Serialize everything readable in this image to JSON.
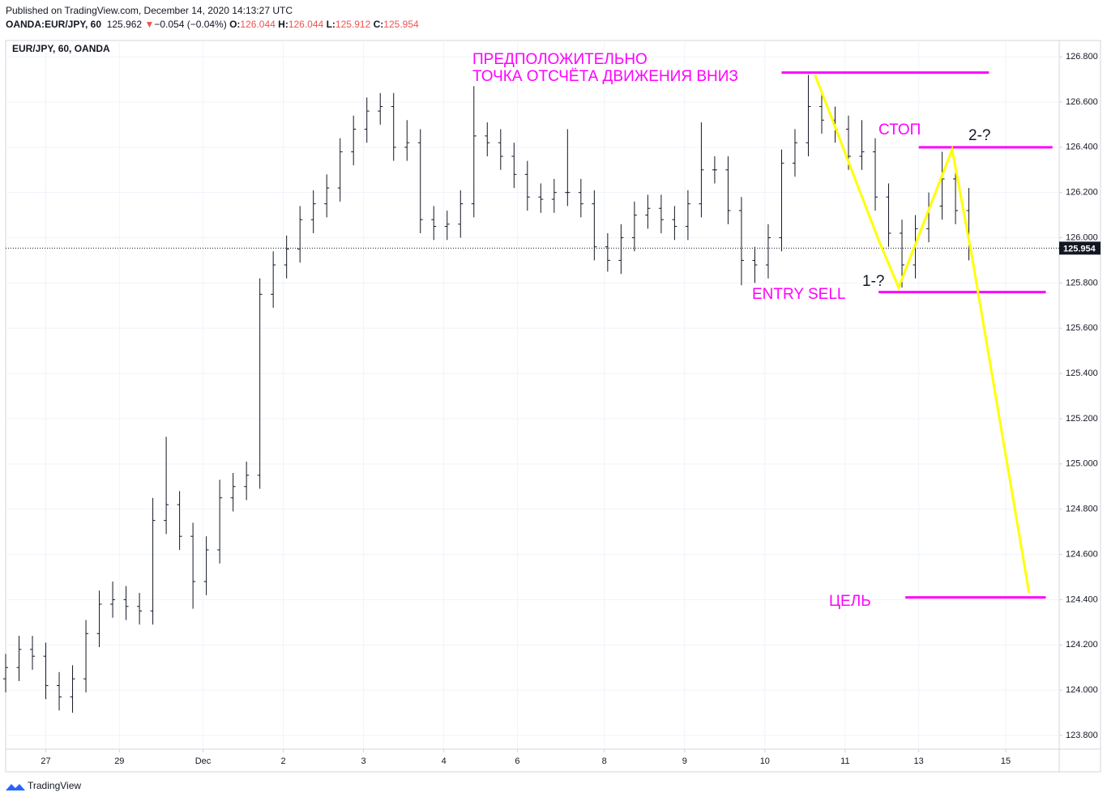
{
  "header": {
    "published": "Published on TradingView.com, December 14, 2020 14:13:27 UTC",
    "symbol": "OANDA:EUR/JPY, 60",
    "last": "125.962",
    "arrow": "▼",
    "change": "−0.054 (−0.04%)",
    "o_label": "O:",
    "o": "126.044",
    "h_label": "H:",
    "h": "126.044",
    "l_label": "L:",
    "l": "125.912",
    "c_label": "C:",
    "c": "125.954"
  },
  "footer": {
    "brand": "TradingView"
  },
  "chart_data": {
    "type": "ohlc",
    "title": "EUR/JPY, 60, OANDA",
    "color": "#131722",
    "x": [
      0,
      4,
      8,
      12,
      16,
      20,
      24,
      28,
      32,
      36,
      40,
      44,
      48,
      52,
      56,
      60,
      64,
      68,
      72,
      76,
      80,
      84,
      88,
      92,
      96,
      100,
      104,
      108,
      112,
      116,
      120,
      124,
      128,
      132,
      136,
      140,
      144,
      148,
      152,
      156,
      160,
      164,
      168,
      172,
      176,
      180,
      184,
      188,
      192,
      196,
      200,
      204,
      208,
      212,
      216,
      220,
      224,
      228,
      232,
      236,
      240,
      244,
      248,
      252,
      256,
      260,
      264,
      268,
      272,
      276,
      280,
      284,
      288
    ],
    "bars": [
      [
        124.05,
        124.16,
        123.99,
        124.1
      ],
      [
        124.1,
        124.24,
        124.04,
        124.18
      ],
      [
        124.18,
        124.24,
        124.09,
        124.15
      ],
      [
        124.15,
        124.21,
        123.96,
        124.02
      ],
      [
        124.02,
        124.08,
        123.91,
        123.97
      ],
      [
        123.97,
        124.11,
        123.9,
        124.05
      ],
      [
        124.05,
        124.31,
        123.99,
        124.25
      ],
      [
        124.25,
        124.44,
        124.19,
        124.38
      ],
      [
        124.38,
        124.48,
        124.32,
        124.4
      ],
      [
        124.4,
        124.46,
        124.31,
        124.37
      ],
      [
        124.37,
        124.43,
        124.29,
        124.35
      ],
      [
        124.35,
        124.85,
        124.29,
        124.75
      ],
      [
        124.75,
        125.12,
        124.69,
        124.82
      ],
      [
        124.82,
        124.88,
        124.62,
        124.68
      ],
      [
        124.68,
        124.74,
        124.36,
        124.48
      ],
      [
        124.48,
        124.68,
        124.42,
        124.62
      ],
      [
        124.62,
        124.93,
        124.56,
        124.85
      ],
      [
        124.85,
        124.96,
        124.79,
        124.9
      ],
      [
        124.9,
        125.01,
        124.84,
        124.95
      ],
      [
        124.95,
        125.82,
        124.89,
        125.75
      ],
      [
        125.75,
        125.94,
        125.69,
        125.88
      ],
      [
        125.88,
        126.01,
        125.82,
        125.95
      ],
      [
        125.95,
        126.14,
        125.89,
        126.08
      ],
      [
        126.08,
        126.21,
        126.02,
        126.15
      ],
      [
        126.15,
        126.28,
        126.09,
        126.22
      ],
      [
        126.22,
        126.44,
        126.16,
        126.38
      ],
      [
        126.38,
        126.54,
        126.32,
        126.48
      ],
      [
        126.48,
        126.62,
        126.42,
        126.56
      ],
      [
        126.56,
        126.64,
        126.5,
        126.58
      ],
      [
        126.58,
        126.64,
        126.34,
        126.4
      ],
      [
        126.4,
        126.52,
        126.34,
        126.42
      ],
      [
        126.42,
        126.48,
        126.02,
        126.08
      ],
      [
        126.08,
        126.14,
        125.99,
        126.05
      ],
      [
        126.05,
        126.12,
        125.99,
        126.06
      ],
      [
        126.06,
        126.21,
        126.0,
        126.15
      ],
      [
        126.15,
        126.67,
        126.09,
        126.45
      ],
      [
        126.45,
        126.51,
        126.36,
        126.42
      ],
      [
        126.42,
        126.48,
        126.3,
        126.36
      ],
      [
        126.36,
        126.42,
        126.22,
        126.28
      ],
      [
        126.28,
        126.34,
        126.12,
        126.18
      ],
      [
        126.18,
        126.24,
        126.11,
        126.17
      ],
      [
        126.17,
        126.26,
        126.11,
        126.2
      ],
      [
        126.2,
        126.48,
        126.14,
        126.2
      ],
      [
        126.2,
        126.26,
        126.09,
        126.15
      ],
      [
        126.15,
        126.21,
        125.9,
        125.96
      ],
      [
        125.96,
        126.02,
        125.85,
        125.9
      ],
      [
        125.9,
        126.06,
        125.84,
        126.0
      ],
      [
        126.0,
        126.16,
        125.94,
        126.1
      ],
      [
        126.1,
        126.19,
        126.04,
        126.13
      ],
      [
        126.13,
        126.19,
        126.02,
        126.08
      ],
      [
        126.08,
        126.14,
        125.99,
        126.05
      ],
      [
        126.05,
        126.21,
        125.99,
        126.15
      ],
      [
        126.15,
        126.51,
        126.09,
        126.3
      ],
      [
        126.3,
        126.36,
        126.24,
        126.3
      ],
      [
        126.3,
        126.36,
        126.06,
        126.12
      ],
      [
        126.12,
        126.18,
        125.79,
        125.9
      ],
      [
        125.9,
        125.96,
        125.8,
        125.88
      ],
      [
        125.88,
        126.06,
        125.82,
        126.0
      ],
      [
        126.0,
        126.39,
        125.94,
        126.33
      ],
      [
        126.33,
        126.48,
        126.27,
        126.42
      ],
      [
        126.42,
        126.72,
        126.36,
        126.58
      ],
      [
        126.58,
        126.64,
        126.46,
        126.52
      ],
      [
        126.52,
        126.58,
        126.42,
        126.48
      ],
      [
        126.48,
        126.54,
        126.3,
        126.36
      ],
      [
        126.36,
        126.52,
        126.3,
        126.38
      ],
      [
        126.38,
        126.44,
        126.12,
        126.18
      ],
      [
        126.18,
        126.24,
        125.96,
        126.02
      ],
      [
        126.02,
        126.08,
        125.78,
        125.88
      ],
      [
        125.88,
        126.1,
        125.82,
        126.04
      ],
      [
        126.04,
        126.2,
        125.98,
        126.14
      ],
      [
        126.14,
        126.38,
        126.08,
        126.26
      ],
      [
        126.26,
        126.32,
        126.06,
        126.12
      ],
      [
        126.12,
        126.22,
        125.9,
        125.96
      ]
    ],
    "xlim": [
      0,
      315
    ],
    "xticks": [
      {
        "value": 12,
        "label": "27"
      },
      {
        "value": 34,
        "label": "29"
      },
      {
        "value": 59,
        "label": "Dec"
      },
      {
        "value": 83,
        "label": "2"
      },
      {
        "value": 107,
        "label": "3"
      },
      {
        "value": 131,
        "label": "4"
      },
      {
        "value": 153,
        "label": "6"
      },
      {
        "value": 179,
        "label": "8"
      },
      {
        "value": 203,
        "label": "9"
      },
      {
        "value": 227,
        "label": "10"
      },
      {
        "value": 251,
        "label": "11"
      },
      {
        "value": 273,
        "label": "13"
      },
      {
        "value": 299,
        "label": "15"
      }
    ],
    "ylim": [
      123.739,
      126.872
    ],
    "yticks": [
      {
        "value": 123.8,
        "label": "123.800"
      },
      {
        "value": 124.0,
        "label": "124.000"
      },
      {
        "value": 124.2,
        "label": "124.200"
      },
      {
        "value": 124.4,
        "label": "124.400"
      },
      {
        "value": 124.6,
        "label": "124.600"
      },
      {
        "value": 124.8,
        "label": "124.800"
      },
      {
        "value": 125.0,
        "label": "125.000"
      },
      {
        "value": 125.2,
        "label": "125.200"
      },
      {
        "value": 125.4,
        "label": "125.400"
      },
      {
        "value": 125.6,
        "label": "125.600"
      },
      {
        "value": 125.8,
        "label": "125.800"
      },
      {
        "value": 126.0,
        "label": "126.000"
      },
      {
        "value": 126.2,
        "label": "126.200"
      },
      {
        "value": 126.4,
        "label": "126.400"
      },
      {
        "value": 126.6,
        "label": "126.600"
      },
      {
        "value": 126.8,
        "label": "126.800"
      }
    ],
    "grid": true,
    "last_price": 125.954,
    "hlines": [
      {
        "color": "#ff00ff",
        "x": [
          232,
          294
        ],
        "y": [
          126.73,
          126.73
        ]
      },
      {
        "color": "#ff00ff",
        "x": [
          273,
          313
        ],
        "y": [
          126.4,
          126.4
        ]
      },
      {
        "color": "#ff00ff",
        "x": [
          261,
          311
        ],
        "y": [
          125.76,
          125.76
        ]
      },
      {
        "color": "#ff00ff",
        "x": [
          269,
          311
        ],
        "y": [
          124.41,
          124.41
        ]
      }
    ],
    "path": {
      "color": "#ffff00",
      "x": [
        242,
        261,
        267,
        283,
        289,
        306
      ],
      "y": [
        126.72,
        125.99,
        125.78,
        126.39,
        125.91,
        124.43
      ]
    },
    "annotations": {
      "line1": "ПРЕДПОЛОЖИТЕЛЬНО",
      "line2": "ТОЧКА ОТСЧЁТА ДВИЖЕНИЯ ВНИЗ",
      "stop": "СТОП",
      "p2": "2-?",
      "p1": "1-?",
      "entry": "ENTRY SELL",
      "target": "ЦЕЛЬ"
    }
  }
}
